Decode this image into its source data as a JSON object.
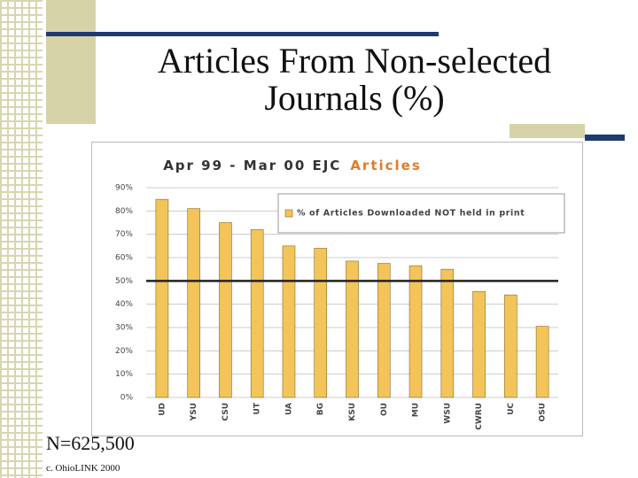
{
  "slide": {
    "title": "Articles From Non-selected Journals (%)",
    "note": "N=625,500",
    "credit": "c. OhioLINK 2000"
  },
  "chart_data": {
    "type": "bar",
    "title": "Apr 99 - Mar 00 EJC",
    "title_highlight": "Articles",
    "categories": [
      "UD",
      "YSU",
      "CSU",
      "UT",
      "UA",
      "BG",
      "KSU",
      "OU",
      "MU",
      "WSU",
      "CWRU",
      "UC",
      "OSU"
    ],
    "series": [
      {
        "name": "% of Articles Downloaded NOT held in print",
        "color": "#f2c45a",
        "values": [
          85,
          81,
          75,
          72,
          65,
          64,
          58.5,
          57.5,
          56.5,
          55,
          45.5,
          44,
          30.5
        ]
      }
    ],
    "ylim": [
      0,
      90
    ],
    "yticks": [
      {
        "value": 0,
        "label": "0%"
      },
      {
        "value": 10,
        "label": "10%"
      },
      {
        "value": 20,
        "label": "20%"
      },
      {
        "value": 30,
        "label": "30%"
      },
      {
        "value": 40,
        "label": "40%"
      },
      {
        "value": 50,
        "label": "50%"
      },
      {
        "value": 60,
        "label": "60%"
      },
      {
        "value": 70,
        "label": "70%"
      },
      {
        "value": 80,
        "label": "80%"
      },
      {
        "value": 90,
        "label": "90%"
      }
    ],
    "reference_line": 50,
    "grid": true,
    "legend": "top-right"
  }
}
